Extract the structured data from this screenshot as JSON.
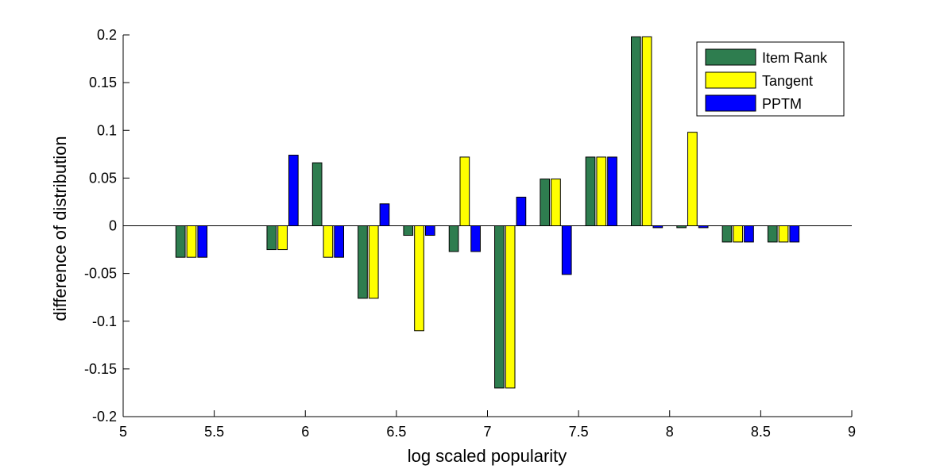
{
  "chart_data": {
    "type": "bar",
    "xlabel": "log scaled popularity",
    "ylabel": "difference of distribution",
    "xlim": [
      5,
      9
    ],
    "ylim": [
      -0.2,
      0.2
    ],
    "grid": false,
    "legend_position": "top-right",
    "x_ticks": [
      "5",
      "5.5",
      "6",
      "6.5",
      "7",
      "7.5",
      "8",
      "8.5",
      "9"
    ],
    "y_ticks": [
      "-0.2",
      "-0.15",
      "-0.1",
      "-0.05",
      "0",
      "0.05",
      "0.1",
      "0.15",
      "0.2"
    ],
    "x": [
      5.375,
      5.875,
      6.125,
      6.375,
      6.625,
      6.875,
      7.125,
      7.375,
      7.625,
      7.875,
      8.125,
      8.375,
      8.625
    ],
    "series": [
      {
        "name": "Item Rank",
        "color": "#2e7d4f",
        "values": [
          -0.033,
          -0.025,
          0.066,
          -0.076,
          -0.01,
          -0.027,
          -0.17,
          0.049,
          0.072,
          0.198,
          -0.002,
          -0.017,
          -0.017
        ]
      },
      {
        "name": "Tangent",
        "color": "#ffff00",
        "values": [
          -0.033,
          -0.025,
          -0.033,
          -0.076,
          -0.11,
          0.072,
          -0.17,
          0.049,
          0.072,
          0.198,
          0.098,
          -0.017,
          -0.017
        ]
      },
      {
        "name": "PPTM",
        "color": "#0000ff",
        "values": [
          -0.033,
          0.074,
          -0.033,
          0.023,
          -0.01,
          -0.027,
          0.03,
          -0.051,
          0.072,
          -0.002,
          -0.002,
          -0.017,
          -0.017
        ]
      }
    ]
  }
}
